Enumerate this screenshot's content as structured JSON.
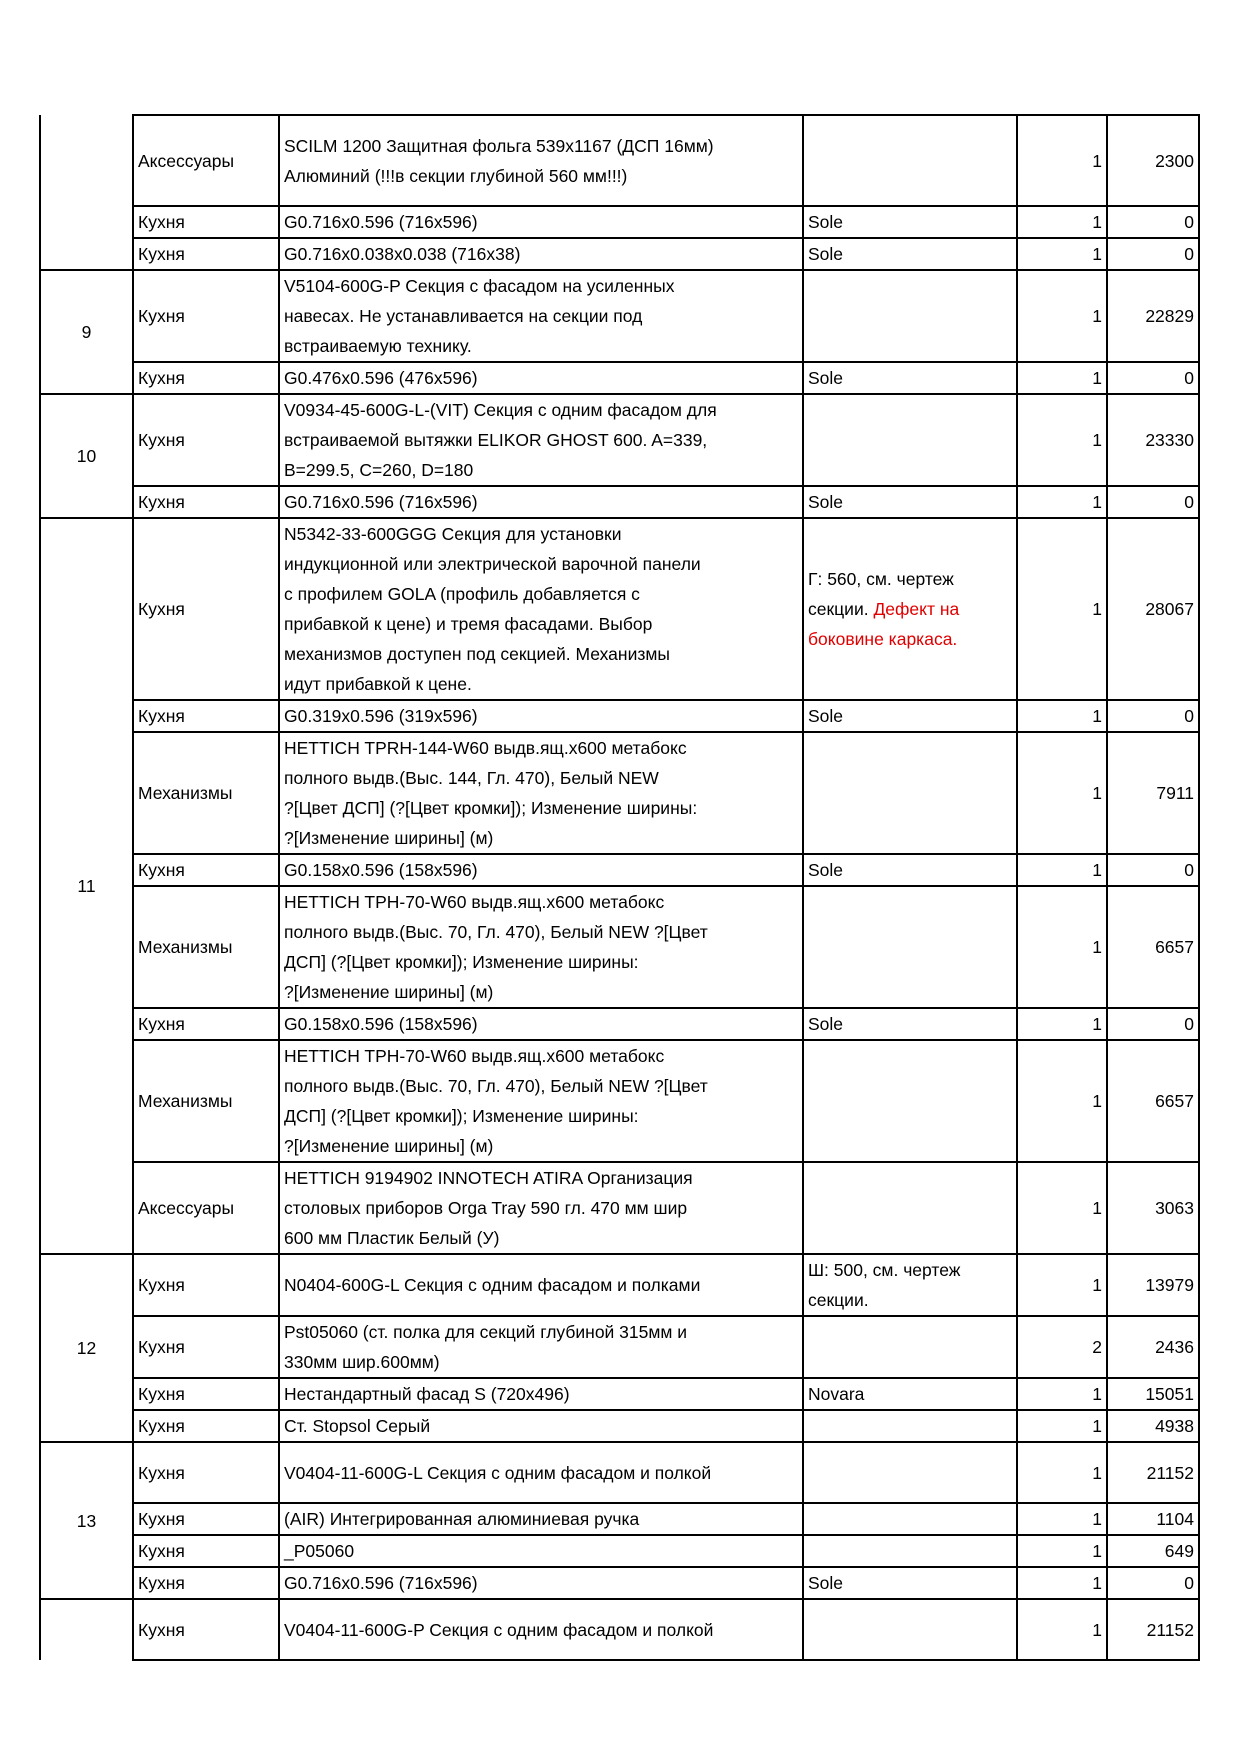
{
  "colors": {
    "defect_text": "#e00000",
    "border": "#000000"
  },
  "groups": [
    {
      "label": "",
      "rows": [
        {
          "cat": "Аксессуары",
          "desc": "SCILM 1200 Защитная фольга 539x1167 (ДСП 16мм)\nАлюминий (!!!в секции глубиной 560 мм!!!)",
          "note": "",
          "qty": "1",
          "price": "2300"
        },
        {
          "cat": "Кухня",
          "desc": "G0.716x0.596 (716x596)",
          "note": "Sole",
          "qty": "1",
          "price": "0"
        },
        {
          "cat": "Кухня",
          "desc": "G0.716x0.038x0.038 (716x38)",
          "note": "Sole",
          "qty": "1",
          "price": "0"
        }
      ]
    },
    {
      "label": "9",
      "rows": [
        {
          "cat": "Кухня",
          "desc": "V5104-600G-P Секция с фасадом на усиленных\nнавесах. Не устанавливается на секции под\nвстраиваемую технику.",
          "note": "",
          "qty": "1",
          "price": "22829"
        },
        {
          "cat": "Кухня",
          "desc": "G0.476x0.596 (476x596)",
          "note": "Sole",
          "qty": "1",
          "price": "0"
        }
      ]
    },
    {
      "label": "10",
      "rows": [
        {
          "cat": "Кухня",
          "desc": "V0934-45-600G-L-(VIT) Секция с одним фасадом для\nвстраиваемой вытяжки ELIKOR GHOST 600. A=339,\nB=299.5, C=260, D=180",
          "note": "",
          "qty": "1",
          "price": "23330"
        },
        {
          "cat": "Кухня",
          "desc": "G0.716x0.596 (716x596)",
          "note": "Sole",
          "qty": "1",
          "price": "0"
        }
      ]
    },
    {
      "label": "11",
      "rows": [
        {
          "cat": "Кухня",
          "desc": "N5342-33-600GGG Секция для установки\nиндукционной или электрической варочной панели\nс профилем GOLA (профиль добавляется с\nприбавкой к цене) и тремя фасадами. Выбор\nмеханизмов доступен под секцией. Механизмы\nидут прибавкой к цене.",
          "note": "Г: 560, см. чертеж\nсекции. ",
          "note_red": "Дефект на\nбоковине каркаса.",
          "qty": "1",
          "price": "28067"
        },
        {
          "cat": "Кухня",
          "desc": "G0.319x0.596 (319x596)",
          "note": "Sole",
          "qty": "1",
          "price": "0"
        },
        {
          "cat": "Механизмы",
          "desc": "HETTICH TPRH-144-W60 выдв.ящ.х600 метабокс\nполного выдв.(Выс. 144, Гл. 470), Белый NEW\n?[Цвет ДСП] (?[Цвет кромки]); Изменение ширины:\n?[Изменение ширины] (м)",
          "note": "",
          "qty": "1",
          "price": "7911"
        },
        {
          "cat": "Кухня",
          "desc": "G0.158x0.596 (158x596)",
          "note": "Sole",
          "qty": "1",
          "price": "0"
        },
        {
          "cat": "Механизмы",
          "desc": "HETTICH TPH-70-W60 выдв.ящ.х600 метабокс\nполного выдв.(Выс. 70, Гл. 470), Белый NEW  ?[Цвет\nДСП] (?[Цвет кромки]); Изменение ширины:\n?[Изменение ширины] (м)",
          "note": "",
          "qty": "1",
          "price": "6657"
        },
        {
          "cat": "Кухня",
          "desc": "G0.158x0.596 (158x596)",
          "note": "Sole",
          "qty": "1",
          "price": "0"
        },
        {
          "cat": "Механизмы",
          "desc": "HETTICH TPH-70-W60 выдв.ящ.х600 метабокс\nполного выдв.(Выс. 70, Гл. 470), Белый NEW  ?[Цвет\nДСП] (?[Цвет кромки]); Изменение ширины:\n?[Изменение ширины] (м)",
          "note": "",
          "qty": "1",
          "price": "6657"
        },
        {
          "cat": "Аксессуары",
          "desc": "HETTICH 9194902 INNOTECH ATIRA Организация\nстоловых приборов Orga Tray 590 гл. 470 мм шир\n600 мм Пластик Белый (У)",
          "note": "",
          "qty": "1",
          "price": "3063"
        }
      ]
    },
    {
      "label": "12",
      "rows": [
        {
          "cat": "Кухня",
          "desc": "N0404-600G-L Секция с одним фасадом и полками",
          "note": "Ш: 500, см. чертеж\nсекции.",
          "qty": "1",
          "price": "13979"
        },
        {
          "cat": "Кухня",
          "desc": "Pst05060 (ст. полка для секций глубиной 315мм и\n330мм шир.600мм)",
          "note": "",
          "qty": "2",
          "price": "2436"
        },
        {
          "cat": "Кухня",
          "desc": "Нестандартный фасад S (720x496)",
          "note": "Novara",
          "qty": "1",
          "price": "15051"
        },
        {
          "cat": "Кухня",
          "desc": "Ст. Stopsol Серый",
          "note": "",
          "qty": "1",
          "price": "4938"
        }
      ]
    },
    {
      "label": "13",
      "rows": [
        {
          "cat": "Кухня",
          "desc": "V0404-11-600G-L Секция с одним фасадом и полкой",
          "note": "",
          "qty": "1",
          "price": "21152"
        },
        {
          "cat": "Кухня",
          "desc": "(AIR) Интегрированная алюминиевая ручка",
          "note": "",
          "qty": "1",
          "price": "1104"
        },
        {
          "cat": "Кухня",
          "desc": "_P05060",
          "note": "",
          "qty": "1",
          "price": "649"
        },
        {
          "cat": "Кухня",
          "desc": "G0.716x0.596 (716x596)",
          "note": "Sole",
          "qty": "1",
          "price": "0"
        }
      ]
    },
    {
      "label": "",
      "rows": [
        {
          "cat": "Кухня",
          "desc": "V0404-11-600G-P Секция с одним фасадом и полкой",
          "note": "",
          "qty": "1",
          "price": "21152"
        }
      ]
    }
  ]
}
